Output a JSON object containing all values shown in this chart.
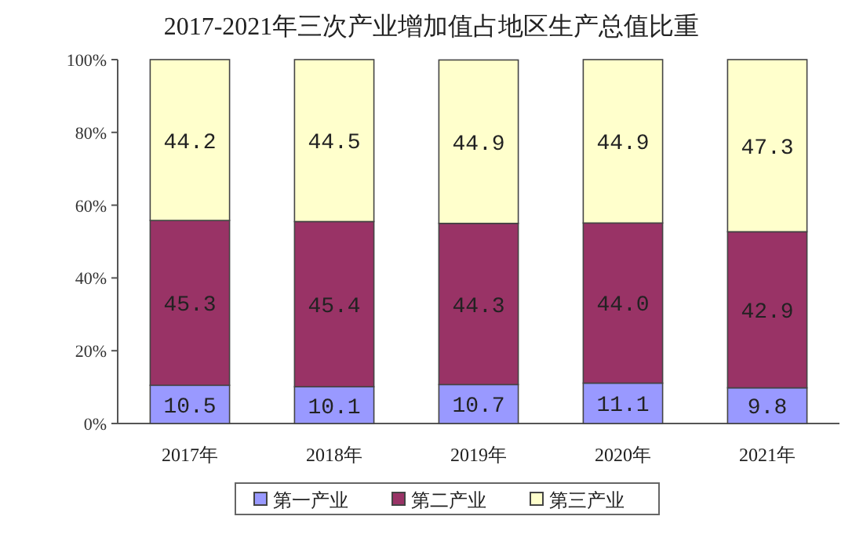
{
  "chart_data": {
    "type": "bar",
    "title": "2017-2021年三次产业增加值占地区生产总值比重",
    "categories": [
      "2017年",
      "2018年",
      "2019年",
      "2020年",
      "2021年"
    ],
    "series": [
      {
        "name": "第一产业",
        "color": "#9999ff",
        "values": [
          10.5,
          10.1,
          10.7,
          11.1,
          9.8
        ]
      },
      {
        "name": "第二产业",
        "color": "#993366",
        "values": [
          45.3,
          45.4,
          44.3,
          44.0,
          42.9
        ],
        "value_labels": [
          "45.3",
          "45.4",
          "44.3",
          "44.0",
          "42.9"
        ]
      },
      {
        "name": "第三产业",
        "color": "#ffffcc",
        "values": [
          44.2,
          44.5,
          44.9,
          44.9,
          47.3
        ]
      }
    ],
    "stacked": true,
    "ylim": [
      0,
      100
    ],
    "yticks": [
      {
        "value": 0,
        "label": "0%"
      },
      {
        "value": 20,
        "label": "20%"
      },
      {
        "value": 40,
        "label": "40%"
      },
      {
        "value": 60,
        "label": "60%"
      },
      {
        "value": 80,
        "label": "80%"
      },
      {
        "value": 100,
        "label": "100%"
      }
    ],
    "data_labels": true,
    "legend": "bottom"
  }
}
